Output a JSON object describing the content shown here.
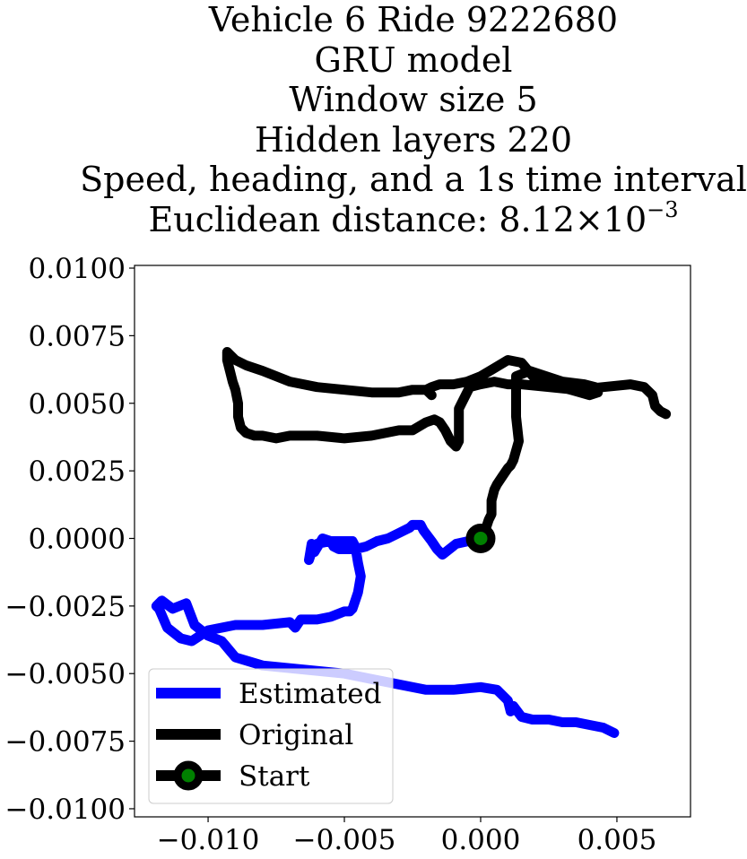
{
  "chart_data": {
    "type": "line",
    "title_lines": [
      "Vehicle 6 Ride 9222680",
      "GRU model",
      "Window size 5",
      "Hidden layers 220",
      "Speed, heading, and a 1s time interval"
    ],
    "title_distance_prefix": "Euclidean distance: ",
    "title_distance_mantissa": "8.12",
    "title_distance_times": "×10",
    "title_distance_exponent": "−3",
    "xlim": [
      -0.0127,
      0.0077
    ],
    "ylim": [
      -0.0103,
      0.0101
    ],
    "x_ticks": [
      -0.01,
      -0.005,
      0.0,
      0.005
    ],
    "x_tick_labels": [
      "−0.010",
      "−0.005",
      "0.000",
      "0.005"
    ],
    "y_ticks": [
      0.01,
      0.0075,
      0.005,
      0.0025,
      0.0,
      -0.0025,
      -0.005,
      -0.0075,
      -0.01
    ],
    "y_tick_labels": [
      "0.0100",
      "0.0075",
      "0.0050",
      "0.0025",
      "0.0000",
      "−0.0025",
      "−0.0050",
      "−0.0075",
      "−0.0100"
    ],
    "legend_position": "lower-left",
    "series": [
      {
        "name": "Estimated",
        "color": "#0000ff",
        "x": [
          0.0,
          -0.0009,
          -0.0014,
          -0.0016,
          -0.0018,
          -0.0021,
          -0.0022,
          -0.0025,
          -0.0026,
          -0.003,
          -0.0034,
          -0.0038,
          -0.0042,
          -0.0046,
          -0.0052,
          -0.0054,
          -0.0055,
          -0.0058,
          -0.0061,
          -0.0062,
          -0.0063,
          -0.0062,
          -0.006,
          -0.0055,
          -0.005,
          -0.0047,
          -0.0046,
          -0.0045,
          -0.0044,
          -0.0045,
          -0.0046,
          -0.0047,
          -0.0048,
          -0.005,
          -0.0055,
          -0.006,
          -0.0066,
          -0.0068,
          -0.007,
          -0.008,
          -0.009,
          -0.01,
          -0.0106,
          -0.011,
          -0.0115,
          -0.0118,
          -0.0119,
          -0.0117,
          -0.0113,
          -0.0108,
          -0.0105,
          -0.01,
          -0.0095,
          -0.009,
          -0.008,
          -0.007,
          -0.006,
          -0.005,
          -0.004,
          -0.003,
          -0.002,
          -0.001,
          0.0,
          0.0006,
          0.001,
          0.0011,
          0.0012,
          0.0015,
          0.0019,
          0.0025,
          0.003,
          0.0035,
          0.004,
          0.0045,
          0.0049
        ],
        "y": [
          0.0,
          -0.0002,
          -0.0006,
          -0.0004,
          -0.0001,
          0.0003,
          0.0005,
          0.0005,
          0.0004,
          0.0002,
          0.0,
          -0.0001,
          -0.0003,
          -0.0004,
          -0.0004,
          -0.0003,
          -0.0001,
          0.0,
          -0.0005,
          -0.0002,
          -0.0008,
          -0.0005,
          -0.0002,
          -0.0001,
          -0.0001,
          -0.0001,
          -0.0003,
          -0.0009,
          -0.0014,
          -0.002,
          -0.0023,
          -0.0026,
          -0.0027,
          -0.0027,
          -0.0029,
          -0.003,
          -0.003,
          -0.0033,
          -0.0031,
          -0.0032,
          -0.0032,
          -0.0034,
          -0.0038,
          -0.0037,
          -0.0033,
          -0.0026,
          -0.0025,
          -0.0023,
          -0.0026,
          -0.0024,
          -0.0032,
          -0.0036,
          -0.0038,
          -0.0044,
          -0.0047,
          -0.0048,
          -0.0049,
          -0.005,
          -0.0052,
          -0.0054,
          -0.0056,
          -0.0056,
          -0.0055,
          -0.0056,
          -0.006,
          -0.0064,
          -0.0062,
          -0.0066,
          -0.0067,
          -0.0067,
          -0.0068,
          -0.0068,
          -0.0069,
          -0.007,
          -0.0072
        ]
      },
      {
        "name": "Original",
        "color": "#000000",
        "x": [
          0.0,
          0.0001,
          0.0002,
          0.0003,
          0.0004,
          0.0004,
          0.0004,
          0.0005,
          0.0006,
          0.0008,
          0.001,
          0.0011,
          0.0012,
          0.0014,
          0.0013,
          0.0013,
          0.0013,
          0.0018,
          0.0024,
          0.003,
          0.0038,
          0.0042,
          0.0043,
          0.004,
          0.0033,
          0.0025,
          0.002,
          0.0015,
          0.001,
          0.0005,
          0.0,
          -0.0005,
          -0.001,
          -0.0015,
          -0.0018,
          -0.002,
          -0.0018,
          -0.002,
          -0.0025,
          -0.003,
          -0.004,
          -0.005,
          -0.006,
          -0.007,
          -0.008,
          -0.0086,
          -0.009,
          -0.0092,
          -0.0093,
          -0.0093,
          -0.0092,
          -0.0091,
          -0.009,
          -0.0089,
          -0.0089,
          -0.0088,
          -0.0086,
          -0.0083,
          -0.008,
          -0.0075,
          -0.007,
          -0.006,
          -0.005,
          -0.004,
          -0.003,
          -0.0025,
          -0.002,
          -0.0017,
          -0.0015,
          -0.0013,
          -0.0011,
          -0.0009,
          -0.0008,
          -0.0008,
          -0.0004,
          0.0,
          0.0005,
          0.001,
          0.0015,
          0.0025,
          0.0035,
          0.0045,
          0.0055,
          0.006,
          0.0063,
          0.0064,
          0.0066,
          0.0068
        ],
        "y": [
          0.0,
          0.0002,
          0.0004,
          0.0007,
          0.0009,
          0.0012,
          0.0014,
          0.0018,
          0.002,
          0.0023,
          0.0026,
          0.0027,
          0.0029,
          0.0036,
          0.0045,
          0.0052,
          0.006,
          0.0062,
          0.006,
          0.0058,
          0.0057,
          0.0056,
          0.0054,
          0.0053,
          0.0055,
          0.0057,
          0.0059,
          0.0065,
          0.0066,
          0.0063,
          0.006,
          0.0058,
          0.0057,
          0.0057,
          0.0056,
          0.0055,
          0.0053,
          0.0055,
          0.0055,
          0.0054,
          0.0054,
          0.0055,
          0.0056,
          0.0058,
          0.0062,
          0.0064,
          0.0066,
          0.0068,
          0.0069,
          0.0066,
          0.0062,
          0.0058,
          0.0055,
          0.005,
          0.0045,
          0.0041,
          0.0039,
          0.0038,
          0.0038,
          0.0037,
          0.0038,
          0.0038,
          0.0037,
          0.0038,
          0.004,
          0.004,
          0.0043,
          0.0044,
          0.0043,
          0.004,
          0.0036,
          0.0034,
          0.0036,
          0.0048,
          0.0056,
          0.0057,
          0.0058,
          0.0057,
          0.0057,
          0.0056,
          0.0055,
          0.0056,
          0.0057,
          0.0056,
          0.0053,
          0.0049,
          0.0047,
          0.0046
        ]
      }
    ],
    "start": {
      "name": "Start",
      "x": 0.0,
      "y": 0.0,
      "color": "#008000",
      "edge_color": "#000000"
    }
  }
}
